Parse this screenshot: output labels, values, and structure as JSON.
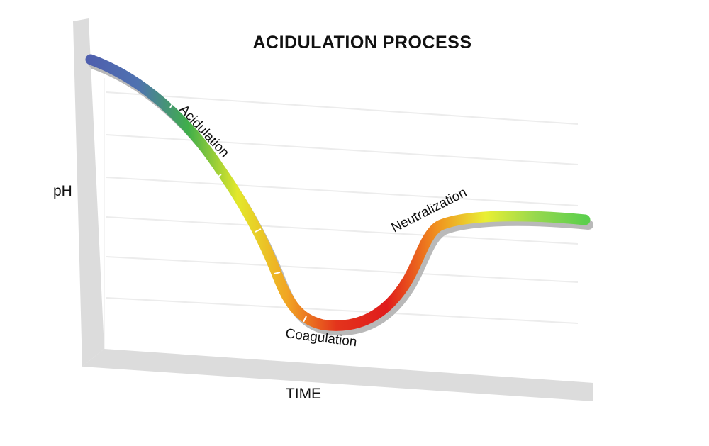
{
  "diagram": {
    "title": "ACIDULATION PROCESS",
    "y_axis_label": "pH",
    "x_axis_label": "TIME",
    "stages": [
      {
        "label": "Acidulation"
      },
      {
        "label": "Coagulation"
      },
      {
        "label": "Neutralization"
      }
    ],
    "gradient_colors": [
      "#4f5fae",
      "#4f72b0",
      "#3fae4a",
      "#e3e82a",
      "#f1a524",
      "#e3341c",
      "#e01c1c",
      "#f0901f",
      "#e9ef34",
      "#97d84e",
      "#5ccf4d"
    ]
  }
}
